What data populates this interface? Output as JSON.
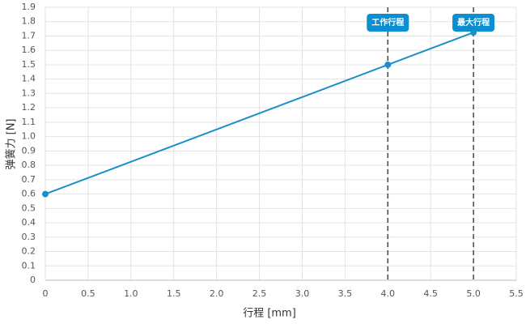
{
  "chart_data": {
    "type": "line",
    "x": [
      0,
      4,
      5
    ],
    "values": [
      0.6,
      1.5,
      1.725
    ],
    "color": "#1a8fc9",
    "xlabel": "行程 [mm]",
    "ylabel": "弹簧力 [N]",
    "xlim": [
      0,
      5.5
    ],
    "ylim": [
      0,
      1.9
    ],
    "xticks": [
      0,
      0.5,
      {
        "value": 1,
        "label": "1.0"
      },
      1.5,
      {
        "value": 2,
        "label": "2.0"
      },
      2.5,
      {
        "value": 3,
        "label": "3.0"
      },
      3.5,
      {
        "value": 4,
        "label": "4.0"
      },
      4.5,
      {
        "value": 5,
        "label": "5.0"
      },
      5.5
    ],
    "yticks": [
      0,
      0.1,
      0.2,
      0.3,
      0.4,
      0.5,
      0.6,
      0.7,
      0.8,
      0.9,
      {
        "value": 1,
        "label": "1.0"
      },
      1.1,
      1.2,
      1.3,
      1.4,
      1.5,
      1.6,
      1.7,
      1.8,
      1.9
    ],
    "grid": true,
    "annotations": [
      {
        "x": 4,
        "label": "工作行程"
      },
      {
        "x": 5,
        "label": "最大行程"
      }
    ]
  }
}
